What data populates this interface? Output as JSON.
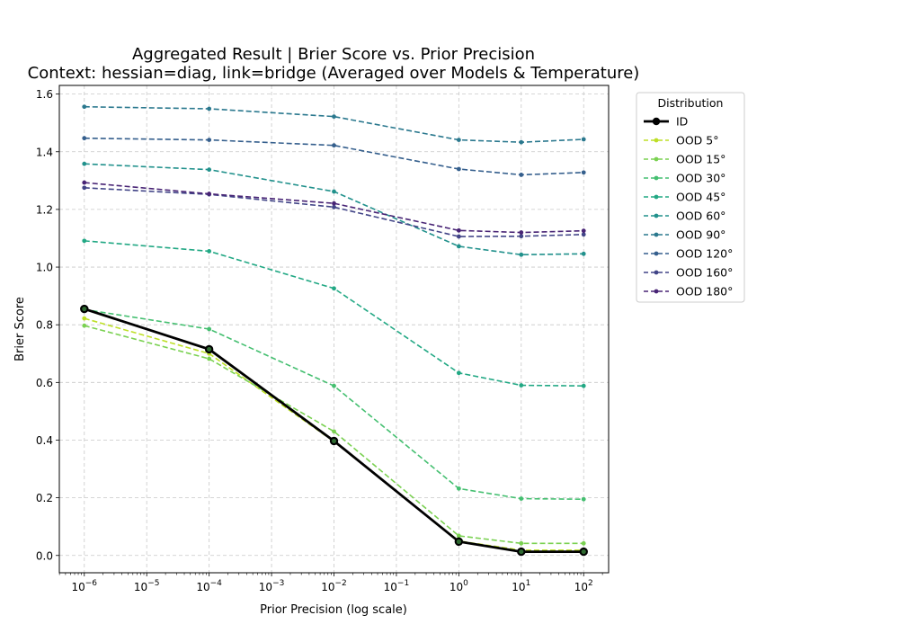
{
  "chart_data": {
    "type": "line",
    "title_line1": "Aggregated Result | Brier Score vs. Prior Precision",
    "title_line2": "Context: hessian=diag, link=bridge (Averaged over Models & Temperature)",
    "xlabel": "Prior Precision (log scale)",
    "ylabel": "Brier Score",
    "x_scale": "log",
    "x": [
      1e-06,
      0.0001,
      0.01,
      1,
      10,
      100
    ],
    "x_ticks": [
      {
        "base": "10",
        "exp": "−6",
        "value": 1e-06
      },
      {
        "base": "10",
        "exp": "−5",
        "value": 1e-05
      },
      {
        "base": "10",
        "exp": "−4",
        "value": 0.0001
      },
      {
        "base": "10",
        "exp": "−3",
        "value": 0.001
      },
      {
        "base": "10",
        "exp": "−2",
        "value": 0.01
      },
      {
        "base": "10",
        "exp": "−1",
        "value": 0.1
      },
      {
        "base": "10",
        "exp": "0",
        "value": 1
      },
      {
        "base": "10",
        "exp": "1",
        "value": 10
      },
      {
        "base": "10",
        "exp": "2",
        "value": 100
      }
    ],
    "xlim_log10": [
      -6.4,
      2.4
    ],
    "y_ticks": [
      "0.0",
      "0.2",
      "0.4",
      "0.6",
      "0.8",
      "1.0",
      "1.2",
      "1.4",
      "1.6"
    ],
    "ylim": [
      -0.06,
      1.63
    ],
    "grid": true,
    "legend_title": "Distribution",
    "legend_position": "outside-right",
    "series": [
      {
        "name": "ID",
        "color": "#000000",
        "style": "solid",
        "marker": "large-circle",
        "values": [
          0.855,
          0.715,
          0.397,
          0.048,
          0.013,
          0.013
        ]
      },
      {
        "name": "OOD 5°",
        "color": "#bddf26",
        "style": "dashed",
        "values": [
          0.822,
          0.7,
          0.395,
          0.05,
          0.018,
          0.018
        ]
      },
      {
        "name": "OOD 15°",
        "color": "#7ad151",
        "style": "dashed",
        "values": [
          0.797,
          0.682,
          0.43,
          0.068,
          0.042,
          0.042
        ]
      },
      {
        "name": "OOD 30°",
        "color": "#44bf70",
        "style": "dashed",
        "values": [
          0.853,
          0.785,
          0.588,
          0.232,
          0.197,
          0.195
        ]
      },
      {
        "name": "OOD 45°",
        "color": "#22a884",
        "style": "dashed",
        "values": [
          1.091,
          1.055,
          0.926,
          0.633,
          0.59,
          0.588
        ]
      },
      {
        "name": "OOD 60°",
        "color": "#21918c",
        "style": "dashed",
        "values": [
          1.358,
          1.338,
          1.262,
          1.072,
          1.043,
          1.046
        ]
      },
      {
        "name": "OOD 90°",
        "color": "#2a788e",
        "style": "dashed",
        "values": [
          1.556,
          1.549,
          1.522,
          1.441,
          1.433,
          1.443
        ]
      },
      {
        "name": "OOD 120°",
        "color": "#355f8d",
        "style": "dashed",
        "values": [
          1.447,
          1.441,
          1.422,
          1.34,
          1.32,
          1.328
        ]
      },
      {
        "name": "OOD 160°",
        "color": "#414487",
        "style": "dashed",
        "values": [
          1.275,
          1.252,
          1.208,
          1.106,
          1.107,
          1.113
        ]
      },
      {
        "name": "OOD 180°",
        "color": "#482475",
        "style": "dashed",
        "values": [
          1.293,
          1.254,
          1.221,
          1.127,
          1.12,
          1.126
        ]
      }
    ]
  }
}
